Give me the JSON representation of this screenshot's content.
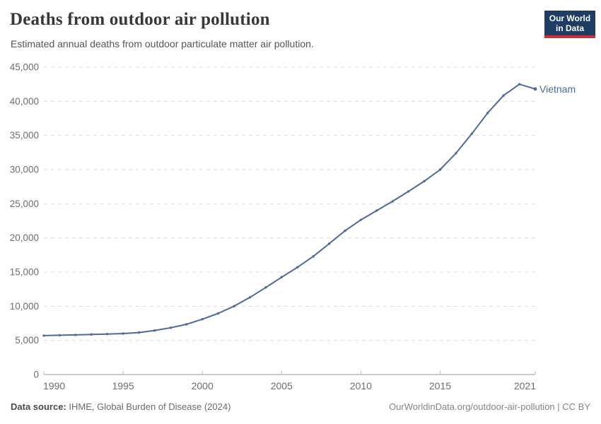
{
  "header": {
    "title": "Deaths from outdoor air pollution",
    "subtitle": "Estimated annual deaths from outdoor particulate matter air pollution.",
    "logo": {
      "line1": "Our World",
      "line2": "in Data",
      "bg_color": "#1d3d63",
      "accent_color": "#c5303e"
    }
  },
  "chart_data": {
    "type": "line",
    "title": "Deaths from outdoor air pollution",
    "xlabel": "",
    "ylabel": "",
    "xlim": [
      1990,
      2021
    ],
    "ylim": [
      0,
      45000
    ],
    "grid": "horizontal-dashed",
    "legend_position": "end-of-line-label",
    "x_ticks": {
      "values": [
        1990,
        1995,
        2000,
        2005,
        2010,
        2015,
        2021
      ],
      "labels": [
        "1990",
        "1995",
        "2000",
        "2005",
        "2010",
        "2015",
        "2021"
      ]
    },
    "y_ticks": {
      "values": [
        0,
        5000,
        10000,
        15000,
        20000,
        25000,
        30000,
        35000,
        40000,
        45000
      ],
      "labels": [
        "0",
        "5,000",
        "10,000",
        "15,000",
        "20,000",
        "25,000",
        "30,000",
        "35,000",
        "40,000",
        "45,000"
      ]
    },
    "series": [
      {
        "name": "Vietnam",
        "color": "#4c6a9c",
        "x": [
          1990,
          1991,
          1992,
          1993,
          1994,
          1995,
          1996,
          1997,
          1998,
          1999,
          2000,
          2001,
          2002,
          2003,
          2004,
          2005,
          2006,
          2007,
          2008,
          2009,
          2010,
          2011,
          2012,
          2013,
          2014,
          2015,
          2016,
          2017,
          2018,
          2019,
          2020,
          2021
        ],
        "values": [
          5700,
          5750,
          5800,
          5870,
          5930,
          6000,
          6150,
          6450,
          6850,
          7350,
          8100,
          8950,
          10000,
          11300,
          12750,
          14250,
          15700,
          17300,
          19150,
          21050,
          22650,
          24000,
          25350,
          26800,
          28300,
          30000,
          32400,
          35250,
          38300,
          40850,
          42500,
          41800
        ]
      }
    ],
    "colors": {
      "gridline": "#dcdcdc",
      "axis_line": "#999999",
      "tick_mark": "#b8b8b8",
      "tick_label": "#6e6e6e"
    }
  },
  "footer": {
    "source_label": "Data source:",
    "source_text": " IHME, Global Burden of Disease (2024)",
    "link_text": "OurWorldinData.org/outdoor-air-pollution | CC BY"
  }
}
